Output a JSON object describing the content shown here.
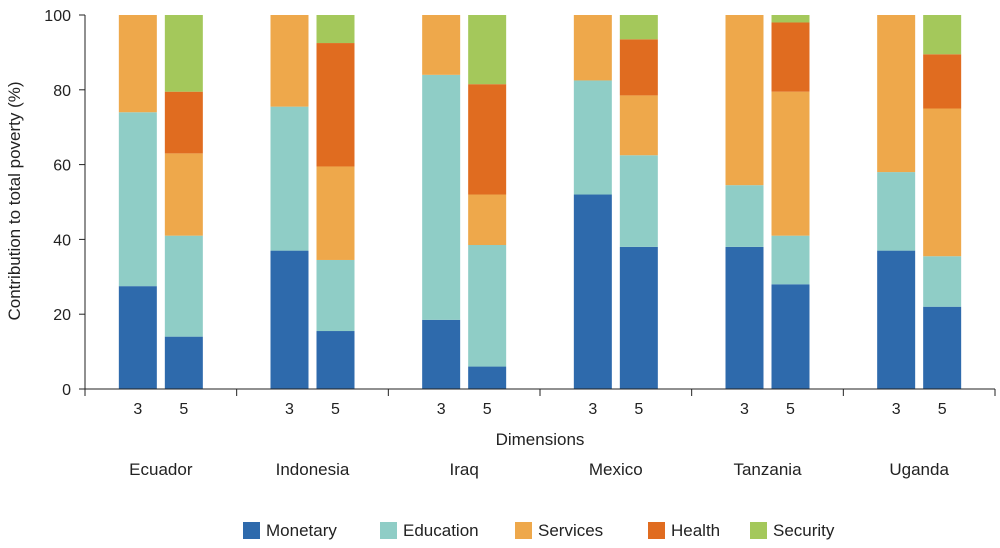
{
  "chart_data": {
    "type": "bar",
    "stacked": true,
    "xlabel": "Dimensions",
    "ylabel": "Contribution to total poverty (%)",
    "ylim": [
      0,
      100
    ],
    "yticks": [
      0,
      20,
      40,
      60,
      80,
      100
    ],
    "grid": false,
    "legend_position": "bottom",
    "series": [
      {
        "name": "Monetary",
        "color": "#2e6aac"
      },
      {
        "name": "Education",
        "color": "#8fcdc6"
      },
      {
        "name": "Services",
        "color": "#eea84b"
      },
      {
        "name": "Health",
        "color": "#e06c20"
      },
      {
        "name": "Security",
        "color": "#a4c85b"
      }
    ],
    "groups": [
      {
        "country": "Ecuador",
        "bars": [
          {
            "dimension": "3",
            "values": [
              27.5,
              46.5,
              26,
              0,
              0
            ]
          },
          {
            "dimension": "5",
            "values": [
              14,
              27,
              22,
              16.5,
              20.5
            ]
          }
        ]
      },
      {
        "country": "Indonesia",
        "bars": [
          {
            "dimension": "3",
            "values": [
              37,
              38.5,
              24.5,
              0,
              0
            ]
          },
          {
            "dimension": "5",
            "values": [
              15.5,
              19,
              25,
              33,
              7.5
            ]
          }
        ]
      },
      {
        "country": "Iraq",
        "bars": [
          {
            "dimension": "3",
            "values": [
              18.5,
              65.5,
              16,
              0,
              0
            ]
          },
          {
            "dimension": "5",
            "values": [
              6,
              32.5,
              13.5,
              29.5,
              18.5
            ]
          }
        ]
      },
      {
        "country": "Mexico",
        "bars": [
          {
            "dimension": "3",
            "values": [
              52,
              30.5,
              17.5,
              0,
              0
            ]
          },
          {
            "dimension": "5",
            "values": [
              38,
              24.5,
              16,
              15,
              6.5
            ]
          }
        ]
      },
      {
        "country": "Tanzania",
        "bars": [
          {
            "dimension": "3",
            "values": [
              38,
              16.5,
              45.5,
              0,
              0
            ]
          },
          {
            "dimension": "5",
            "values": [
              28,
              13,
              38.5,
              18.5,
              2
            ]
          }
        ]
      },
      {
        "country": "Uganda",
        "bars": [
          {
            "dimension": "3",
            "values": [
              37,
              21,
              42,
              0,
              0
            ]
          },
          {
            "dimension": "5",
            "values": [
              22,
              13.5,
              39.5,
              14.5,
              10.5
            ]
          }
        ]
      }
    ]
  }
}
